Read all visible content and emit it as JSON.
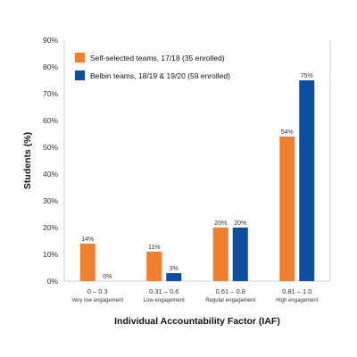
{
  "chart_data": {
    "type": "bar",
    "xlabel": "Individual Accountability Factor (IAF)",
    "ylabel": "Students (%)",
    "ylim": [
      0,
      90
    ],
    "y_ticks": [
      "0%",
      "10%",
      "20%",
      "30%",
      "40%",
      "50%",
      "60%",
      "70%",
      "80%",
      "90%"
    ],
    "categories": [
      "0 – 0.3",
      "0.31 – 0.6",
      "0.61 – 0.8",
      "0.81 – 1.0"
    ],
    "category_sublabels": [
      "Very low engagement",
      "Low engagement",
      "Regular engagement",
      "High engagement"
    ],
    "legend_position": "top-left",
    "grid": false,
    "series": [
      {
        "name": "Self-selected teams, 17/18 (35 enrolled)",
        "color": "#f07f30",
        "values": [
          14,
          11,
          20,
          54
        ],
        "labels": [
          "14%",
          "11%",
          "20%",
          "54%"
        ]
      },
      {
        "name": "Belbin teams, 18/19 & 19/20 (59 enrolled)",
        "color": "#0d4ea0",
        "values": [
          0,
          3,
          20,
          75
        ],
        "labels": [
          "0%",
          "3%",
          "20%",
          "75%"
        ]
      }
    ]
  }
}
